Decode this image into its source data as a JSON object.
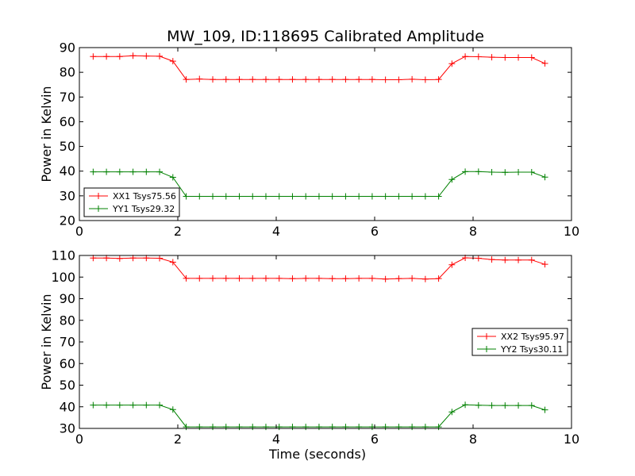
{
  "title": "MW_109, ID:118695 Calibrated Amplitude",
  "chart_data": [
    {
      "type": "line",
      "title": "MW_109, ID:118695 Calibrated Amplitude",
      "xlabel": "",
      "ylabel": "Power in Kelvin",
      "xlim": [
        0,
        10
      ],
      "ylim": [
        20,
        90
      ],
      "xticks": [
        "0",
        "2",
        "4",
        "6",
        "8",
        "10"
      ],
      "yticks": [
        "20",
        "30",
        "40",
        "50",
        "60",
        "70",
        "80",
        "90"
      ],
      "legend_position": "lower-left",
      "x": [
        0.28,
        0.55,
        0.82,
        1.09,
        1.36,
        1.63,
        1.9,
        2.17,
        2.44,
        2.71,
        2.98,
        3.25,
        3.52,
        3.79,
        4.06,
        4.33,
        4.6,
        4.87,
        5.14,
        5.41,
        5.68,
        5.95,
        6.22,
        6.49,
        6.76,
        7.03,
        7.3,
        7.57,
        7.84,
        8.11,
        8.38,
        8.65,
        8.92,
        9.19,
        9.46
      ],
      "series": [
        {
          "name": "XX1 Tsys75.56",
          "color": "#ff0000",
          "values": [
            86.4,
            86.4,
            86.4,
            86.7,
            86.6,
            86.5,
            84.5,
            77.1,
            77.3,
            77.1,
            77.1,
            77.1,
            77.1,
            77.1,
            77.1,
            77.1,
            77.1,
            77.1,
            77.1,
            77.1,
            77.1,
            77.1,
            77.0,
            77.0,
            77.2,
            77.0,
            77.1,
            83.5,
            86.4,
            86.3,
            86.1,
            86.0,
            86.0,
            86.0,
            83.6
          ]
        },
        {
          "name": "YY1 Tsys29.32",
          "color": "#008000",
          "values": [
            39.7,
            39.7,
            39.7,
            39.7,
            39.7,
            39.7,
            37.5,
            29.8,
            29.8,
            29.8,
            29.8,
            29.8,
            29.8,
            29.8,
            29.8,
            29.8,
            29.8,
            29.8,
            29.8,
            29.8,
            29.8,
            29.8,
            29.8,
            29.8,
            29.8,
            29.8,
            29.8,
            36.6,
            39.8,
            39.8,
            39.6,
            39.5,
            39.6,
            39.6,
            37.6
          ]
        }
      ]
    },
    {
      "type": "line",
      "title": "",
      "xlabel": "Time (seconds)",
      "ylabel": "Power in Kelvin",
      "xlim": [
        0,
        10
      ],
      "ylim": [
        30,
        110
      ],
      "xticks": [
        "0",
        "2",
        "4",
        "6",
        "8",
        "10"
      ],
      "yticks": [
        "30",
        "40",
        "50",
        "60",
        "70",
        "80",
        "90",
        "100",
        "110"
      ],
      "legend_position": "center-right",
      "x": [
        0.28,
        0.55,
        0.82,
        1.09,
        1.36,
        1.63,
        1.9,
        2.17,
        2.44,
        2.71,
        2.98,
        3.25,
        3.52,
        3.79,
        4.06,
        4.33,
        4.6,
        4.87,
        5.14,
        5.41,
        5.68,
        5.95,
        6.22,
        6.49,
        6.76,
        7.03,
        7.3,
        7.57,
        7.84,
        8.11,
        8.38,
        8.65,
        8.92,
        9.19,
        9.46
      ],
      "series": [
        {
          "name": "XX2 Tsys95.97",
          "color": "#ff0000",
          "values": [
            108.8,
            108.8,
            108.6,
            108.8,
            108.8,
            108.7,
            106.9,
            99.4,
            99.4,
            99.4,
            99.4,
            99.4,
            99.4,
            99.4,
            99.4,
            99.3,
            99.4,
            99.4,
            99.3,
            99.3,
            99.4,
            99.4,
            99.1,
            99.3,
            99.4,
            99.1,
            99.3,
            105.7,
            108.9,
            108.7,
            108.1,
            107.9,
            107.9,
            107.9,
            105.9
          ]
        },
        {
          "name": "YY2 Tsys30.11",
          "color": "#008000",
          "values": [
            40.8,
            40.8,
            40.8,
            40.8,
            40.8,
            40.8,
            38.7,
            30.7,
            30.7,
            30.7,
            30.7,
            30.7,
            30.7,
            30.7,
            30.7,
            30.7,
            30.7,
            30.7,
            30.7,
            30.7,
            30.7,
            30.7,
            30.7,
            30.7,
            30.7,
            30.7,
            30.7,
            37.6,
            40.9,
            40.7,
            40.6,
            40.6,
            40.6,
            40.6,
            38.6
          ]
        }
      ]
    }
  ]
}
